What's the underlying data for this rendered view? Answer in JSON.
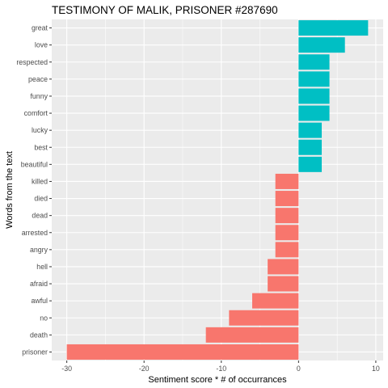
{
  "chart_data": {
    "type": "bar",
    "orientation": "horizontal",
    "title": "TESTIMONY OF MALIK, PRISONER #287690",
    "xlabel": "Sentiment score * # of occurrances",
    "ylabel": "Words from the text",
    "xlim": [
      -31.95,
      10.95
    ],
    "xticks": [
      -30,
      -20,
      -10,
      0,
      10
    ],
    "grid": true,
    "legend": "none",
    "colors": {
      "positive": "#00BFC4",
      "negative": "#F8766D",
      "panel": "#EBEBEB",
      "grid": "#FFFFFF"
    },
    "categories": [
      "great",
      "love",
      "respected",
      "peace",
      "funny",
      "comfort",
      "lucky",
      "best",
      "beautiful",
      "killed",
      "died",
      "dead",
      "arrested",
      "angry",
      "hell",
      "afraid",
      "awful",
      "no",
      "death",
      "prisoner"
    ],
    "values": [
      9,
      6,
      4,
      4,
      4,
      4,
      3,
      3,
      3,
      -3,
      -3,
      -3,
      -3,
      -3,
      -4,
      -4,
      -6,
      -9,
      -12,
      -30
    ]
  }
}
